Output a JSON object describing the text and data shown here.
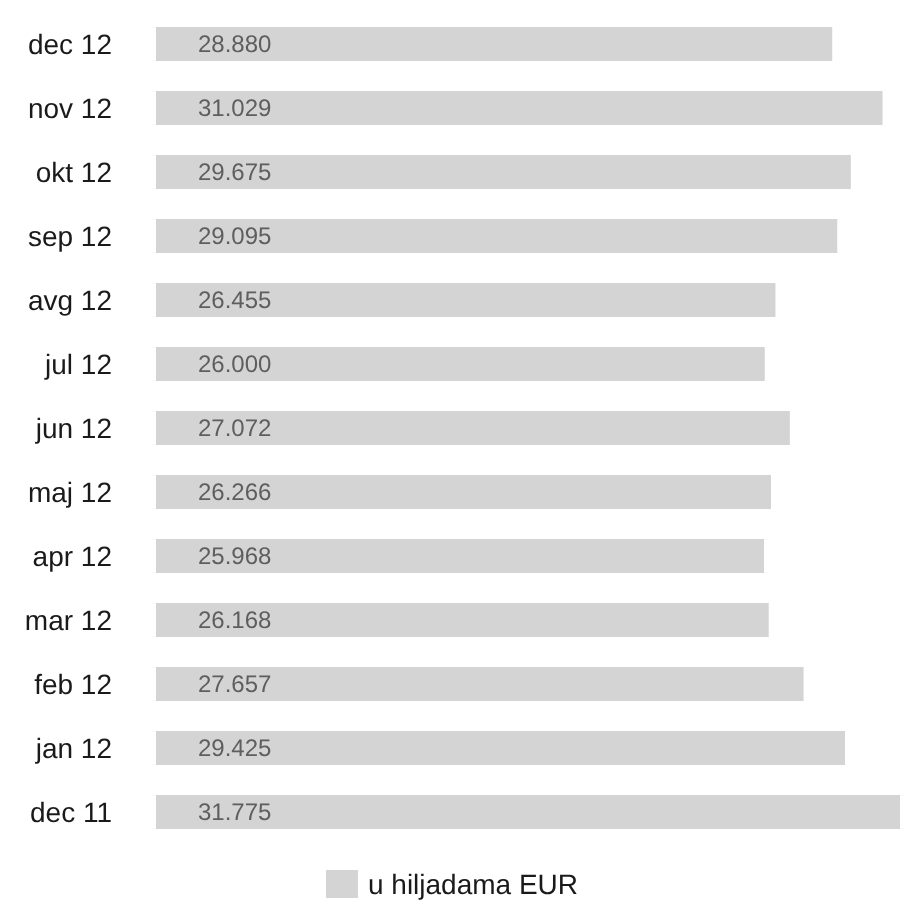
{
  "chart_data": {
    "type": "bar",
    "orientation": "horizontal",
    "categories": [
      "dec 12",
      "nov 12",
      "okt 12",
      "sep 12",
      "avg 12",
      "jul 12",
      "jun 12",
      "maj 12",
      "apr 12",
      "mar 12",
      "feb 12",
      "jan 12",
      "dec 11"
    ],
    "series": [
      {
        "name": "u hiljadama EUR",
        "color": "#d4d4d4",
        "values": [
          28880,
          31029,
          29675,
          29095,
          26455,
          26000,
          27072,
          26266,
          25968,
          26168,
          27657,
          29425,
          31775
        ],
        "value_labels": [
          "28.880",
          "31.029",
          "29.675",
          "29.095",
          "26.455",
          "26.000",
          "27.072",
          "26.266",
          "25.968",
          "26.168",
          "27.657",
          "29.425",
          "31.775"
        ]
      }
    ],
    "legend": "bottom",
    "tick_labels": "y"
  }
}
